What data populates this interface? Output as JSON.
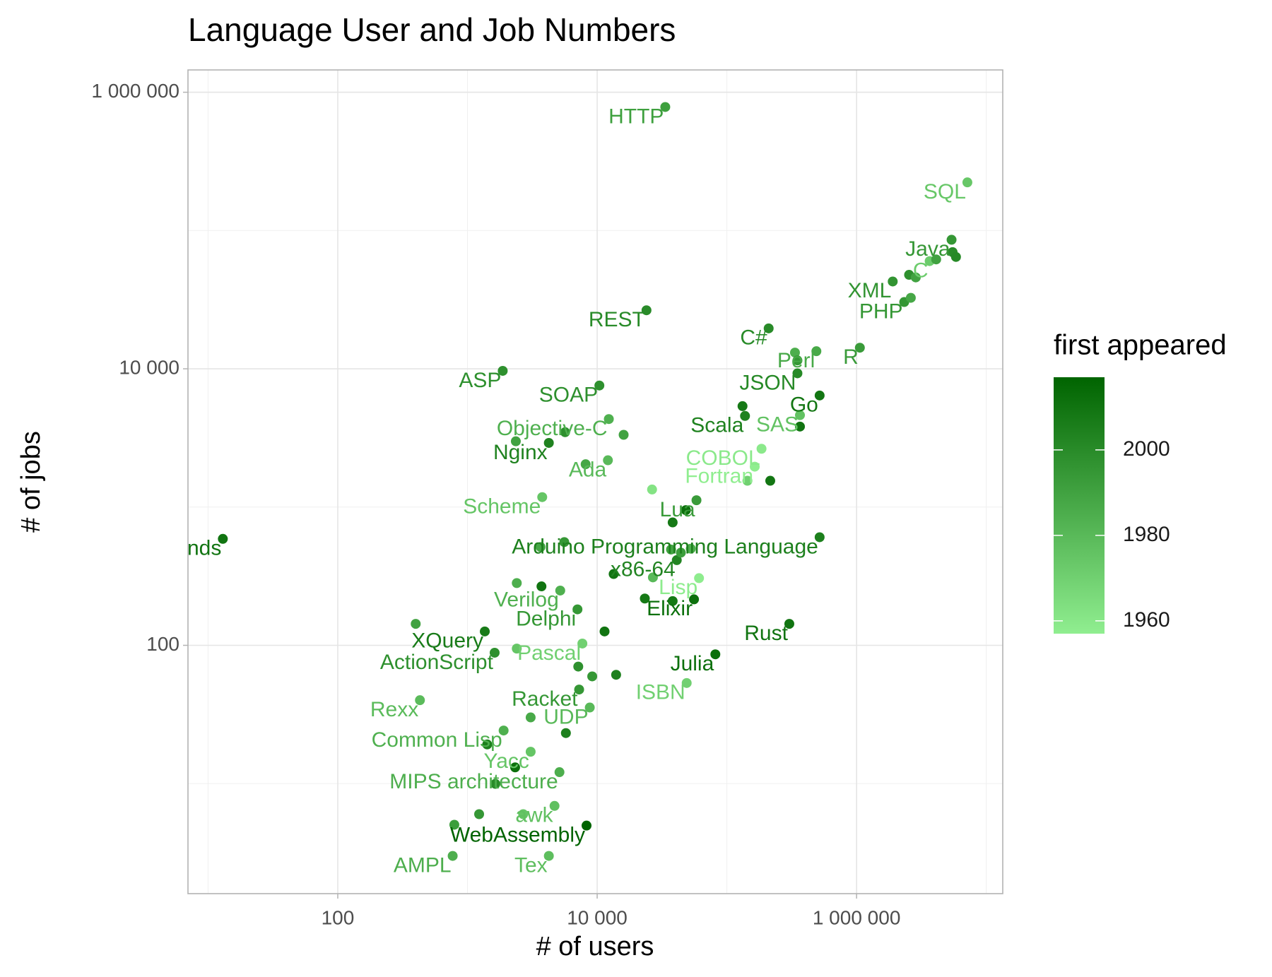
{
  "chart_data": {
    "type": "scatter",
    "title": "Language User and Job Numbers",
    "x_label": "# of users",
    "y_label": "# of jobs",
    "log_x": true,
    "log_y": true,
    "grid": true,
    "xlim": [
      7,
      13400000
    ],
    "ylim": [
      1.6,
      1450000
    ],
    "xticks": [
      100,
      {
        "value": 10000,
        "label": "10 000"
      },
      {
        "value": 1000000,
        "label": "1 000 000"
      }
    ],
    "yticks": [
      100,
      {
        "value": 10000,
        "label": "10 000"
      },
      {
        "value": 1000000,
        "label": "1 000 000"
      }
    ],
    "x_minor_ticks": [
      10,
      1000,
      100000,
      10000000
    ],
    "y_minor_ticks": [
      10,
      1000,
      100000
    ],
    "color_scale": {
      "title": "first appeared",
      "low": "#90ee90",
      "high": "#006400",
      "limits": [
        1957,
        2017
      ],
      "ticks": [
        1960,
        1980,
        2000
      ]
    },
    "labels": [
      "HTTP",
      "SQL",
      "Java",
      "C",
      "XML",
      "PHP",
      "REST",
      "C#",
      "Perl",
      "R",
      "ASP",
      "JSON",
      "SOAP",
      "Go",
      "Scala",
      "SAS",
      "Objective-C",
      "Nginx",
      "COBOL",
      "Ada",
      "Fortran",
      "Scheme",
      "Lua",
      "nds",
      "Arduino Programming Language",
      "x86-64",
      "Lisp",
      "Verilog",
      "Elixir",
      "Delphi",
      "Rust",
      "XQuery",
      "Pascal",
      "ActionScript",
      "Julia",
      "ISBN",
      "Racket",
      "Rexx",
      "UDP",
      "Common Lisp",
      "Yacc",
      "MIPS architecture",
      "awk",
      "WebAssembly",
      "AMPL",
      "Tex",
      null,
      null,
      null,
      null,
      null,
      null,
      null,
      null,
      null,
      null,
      null,
      null,
      null,
      null,
      null,
      null,
      null,
      null,
      null,
      null,
      null,
      null,
      null,
      null,
      null,
      null,
      null,
      null,
      null,
      null,
      null,
      null,
      null,
      null,
      null,
      null,
      null,
      null,
      null,
      null,
      null,
      null,
      null,
      null
    ],
    "x": [
      33500,
      7150000,
      5400000,
      3660000,
      1900000,
      2330000,
      24000,
      210000,
      490000,
      1060000,
      1870,
      350000,
      10400,
      519000,
      138000,
      366000,
      12300,
      4240,
      185000,
      12100,
      164000,
      3770,
      58300,
      13,
      519000,
      41100,
      61000,
      5190,
      55800,
      7050,
      303000,
      1360,
      7690,
      1620,
      81500,
      49000,
      7260,
      430,
      8770,
      1900,
      3070,
      5120,
      4690,
      8280,
      769,
      4240,
      5500000,
      5840000,
      4110000,
      2540000,
      2860000,
      2620000,
      335000,
      350000,
      366000,
      132000,
      144000,
      216000,
      16000,
      5660,
      2360,
      8150,
      26500,
      48300,
      38200,
      3660,
      5580,
      37100,
      44200,
      52700,
      23300,
      13400,
      26900,
      2400,
      3720,
      38200,
      399,
      11400,
      2400,
      7150,
      9160,
      14000,
      3070,
      5740,
      2330,
      1640,
      792,
      1230,
      2690,
      1420
    ],
    "values": [
      782000,
      223000,
      85700,
      60100,
      42800,
      30400,
      26500,
      19600,
      13400,
      14200,
      9660,
      9270,
      7570,
      6410,
      4560,
      4620,
      4330,
      2910,
      2640,
      2180,
      1960,
      1180,
      1120,
      589,
      605,
      413,
      306,
      249,
      215,
      182,
      143,
      126,
      103,
      88.4,
      86.1,
      53.4,
      47.9,
      40.1,
      35.5,
      24.2,
      17,
      12.1,
      6.9,
      4.97,
      3,
      3,
      69800,
      64400,
      61800,
      47800,
      45800,
      32600,
      13100,
      11500,
      3820,
      5370,
      1550,
      1550,
      3330,
      3480,
      2990,
      2040,
      1340,
      950,
      774,
      514,
      558,
      493,
      468,
      500,
      218,
      328,
      310,
      282,
      267,
      209,
      143,
      126,
      94.7,
      70.2,
      59.6,
      61.2,
      30.1,
      23.2,
      13.1,
      9.96,
      5.04,
      6.01,
      6.01,
      19.2
    ],
    "color_values": [
      1991,
      1974,
      1995,
      1972,
      1996,
      1995,
      2000,
      2000,
      1987,
      1993,
      1998,
      2001,
      1998,
      2009,
      2004,
      1976,
      1984,
      2004,
      1959,
      1980,
      1957,
      1975,
      1993,
      2010,
      2005,
      2003,
      1958,
      1984,
      2012,
      1995,
      2010,
      2007,
      1970,
      1998,
      2012,
      1970,
      1995,
      1979,
      1980,
      1984,
      1975,
      1985,
      1977,
      2017,
      1985,
      1978,
      2000,
      2001,
      1990,
      1998,
      1990,
      1988,
      1985,
      1995,
      2010,
      2008,
      1970,
      2009,
      1990,
      1998,
      1990,
      1988,
      1962,
      2012,
      2008,
      1988,
      1995,
      1990,
      1992,
      1985,
      2008,
      2010,
      1980,
      1985,
      2010,
      2008,
      1990,
      2010,
      1975,
      1998,
      1995,
      2005,
      1987,
      2005,
      2012,
      2000,
      1992,
      1995,
      1975,
      2005
    ]
  }
}
